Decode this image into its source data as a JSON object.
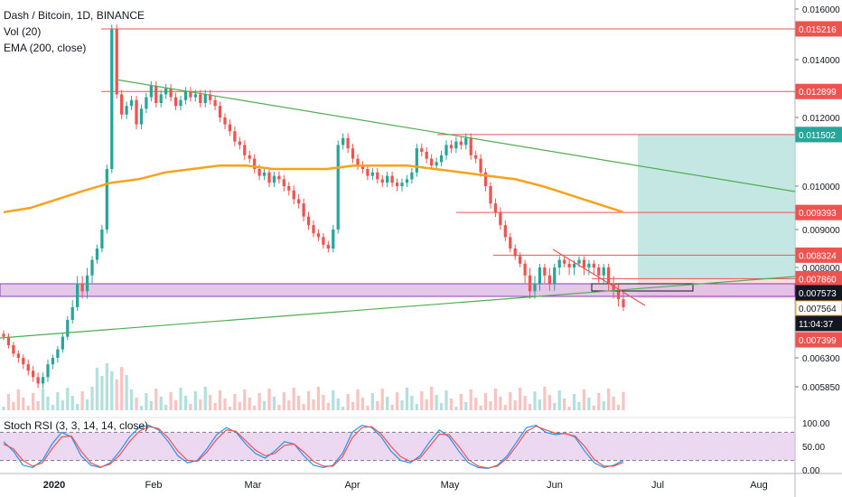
{
  "header": {
    "symbol": "Dash / Bitcoin, 1D, BINANCE",
    "vol": "Vol (20)",
    "ema": "EMA (200, close)",
    "stoch": "Stoch RSI (3, 3, 14, 14, close)"
  },
  "colors": {
    "up": "#26a69a",
    "down": "#ef5350",
    "ema": "#f7a21b",
    "trend": "#4caf50",
    "resistance": "#ef5350",
    "zone": "#e1bee7",
    "target": "#b2dfdb",
    "stoch_k": "#2196f3",
    "stoch_d": "#ef5350",
    "stoch_band": "#e1bee7"
  },
  "chart_data": [
    {
      "type": "candlestick",
      "title": "Dash / Bitcoin, 1D, BINANCE",
      "y_ticks": [
        "0.016000",
        "0.014000",
        "0.012000",
        "0.010000",
        "0.009000",
        "0.008000",
        "0.006300",
        "0.005850"
      ],
      "x_ticks": [
        "2020",
        "Feb",
        "Mar",
        "Apr",
        "May",
        "Jun",
        "Jul",
        "Aug"
      ],
      "price_tags": [
        {
          "label": "0.015216",
          "value": 0.015216,
          "kind": "level"
        },
        {
          "label": "0.012899",
          "value": 0.012899,
          "kind": "level"
        },
        {
          "label": "0.011504",
          "value": 0.011504,
          "kind": "level"
        },
        {
          "label": "0.011502",
          "value": 0.011502,
          "kind": "target"
        },
        {
          "label": "0.009393",
          "value": 0.009393,
          "kind": "level"
        },
        {
          "label": "0.008324",
          "value": 0.008324,
          "kind": "level"
        },
        {
          "label": "0.007860",
          "value": 0.00786,
          "kind": "level"
        },
        {
          "label": "0.007573",
          "value": 0.007573,
          "kind": "current"
        },
        {
          "label": "0.007564",
          "value": 0.007564,
          "kind": "ema"
        },
        {
          "label": "11:04:37",
          "value": 0.00745,
          "kind": "timer"
        },
        {
          "label": "0.007399",
          "value": 0.007399,
          "kind": "level"
        }
      ],
      "horizontal_levels": [
        0.015216,
        0.012899,
        0.011504,
        0.009393,
        0.008324,
        0.00786
      ],
      "closes": [
        0.0068,
        0.0066,
        0.0064,
        0.0063,
        0.0062,
        0.0061,
        0.006,
        0.0059,
        0.006,
        0.0062,
        0.0063,
        0.0065,
        0.0068,
        0.0072,
        0.0075,
        0.0078,
        0.0077,
        0.0079,
        0.0082,
        0.0085,
        0.009,
        0.0105,
        0.0152,
        0.0128,
        0.0121,
        0.0124,
        0.0126,
        0.0118,
        0.0123,
        0.0127,
        0.0131,
        0.0125,
        0.0128,
        0.013,
        0.0127,
        0.0124,
        0.0126,
        0.0129,
        0.0127,
        0.0128,
        0.0125,
        0.0128,
        0.0126,
        0.0124,
        0.012,
        0.0118,
        0.0116,
        0.0113,
        0.0112,
        0.0109,
        0.0108,
        0.0105,
        0.0103,
        0.0104,
        0.0101,
        0.0103,
        0.0102,
        0.01,
        0.0099,
        0.0097,
        0.0096,
        0.0093,
        0.0091,
        0.0089,
        0.0088,
        0.0086,
        0.0085,
        0.009,
        0.0112,
        0.0114,
        0.0111,
        0.0108,
        0.0106,
        0.0105,
        0.0103,
        0.0104,
        0.0102,
        0.0101,
        0.0103,
        0.0101,
        0.01,
        0.0101,
        0.0102,
        0.0104,
        0.0111,
        0.011,
        0.0108,
        0.0106,
        0.0107,
        0.0109,
        0.0112,
        0.0111,
        0.0113,
        0.0112,
        0.0114,
        0.0109,
        0.0108,
        0.0104,
        0.01,
        0.0096,
        0.0094,
        0.0091,
        0.0088,
        0.0085,
        0.0083,
        0.0081,
        0.0079,
        0.0077,
        0.0078,
        0.008,
        0.0079,
        0.0078,
        0.008,
        0.0082,
        0.0081,
        0.008,
        0.0081,
        0.0082,
        0.008,
        0.0081,
        0.008,
        0.0079,
        0.008,
        0.0078,
        0.0077,
        0.0076,
        0.0075
      ],
      "ema_200": [
        0.0094,
        0.0095,
        0.0097,
        0.0099,
        0.0101,
        0.0102,
        0.0104,
        0.0105,
        0.0106,
        0.0106,
        0.0105,
        0.0105,
        0.0105,
        0.0106,
        0.0106,
        0.0106,
        0.0105,
        0.0104,
        0.0103,
        0.0102,
        0.01,
        0.0098,
        0.0096,
        0.0094
      ],
      "vol_series": "Vol (20)",
      "ema_series": "EMA (200, close)"
    },
    {
      "type": "line",
      "title": "Stoch RSI (3, 3, 14, 14, close)",
      "y_ticks": [
        "100.00",
        "50.00",
        "0.00"
      ],
      "ylim": [
        0,
        100
      ],
      "bands": [
        80,
        20
      ],
      "series": [
        {
          "values": [
            60,
            40,
            10,
            5,
            20,
            55,
            80,
            70,
            30,
            10,
            5,
            15,
            40,
            70,
            90,
            95,
            85,
            60,
            30,
            15,
            20,
            45,
            75,
            90,
            80,
            55,
            35,
            25,
            40,
            60,
            55,
            30,
            10,
            5,
            10,
            35,
            80,
            95,
            90,
            70,
            40,
            20,
            15,
            30,
            60,
            85,
            70,
            40,
            15,
            5,
            3,
            10,
            30,
            60,
            90,
            95,
            80,
            75,
            78,
            70,
            40,
            15,
            5,
            10,
            20
          ]
        },
        {
          "values": [
            55,
            45,
            20,
            8,
            15,
            45,
            70,
            72,
            40,
            15,
            6,
            12,
            32,
            60,
            82,
            92,
            88,
            68,
            40,
            20,
            18,
            38,
            65,
            85,
            82,
            62,
            42,
            30,
            35,
            52,
            55,
            38,
            18,
            8,
            8,
            28,
            68,
            90,
            92,
            76,
            50,
            28,
            18,
            25,
            50,
            76,
            75,
            50,
            22,
            8,
            4,
            8,
            25,
            52,
            82,
            93,
            85,
            78,
            77,
            72,
            50,
            22,
            8,
            8,
            16
          ]
        }
      ]
    }
  ]
}
